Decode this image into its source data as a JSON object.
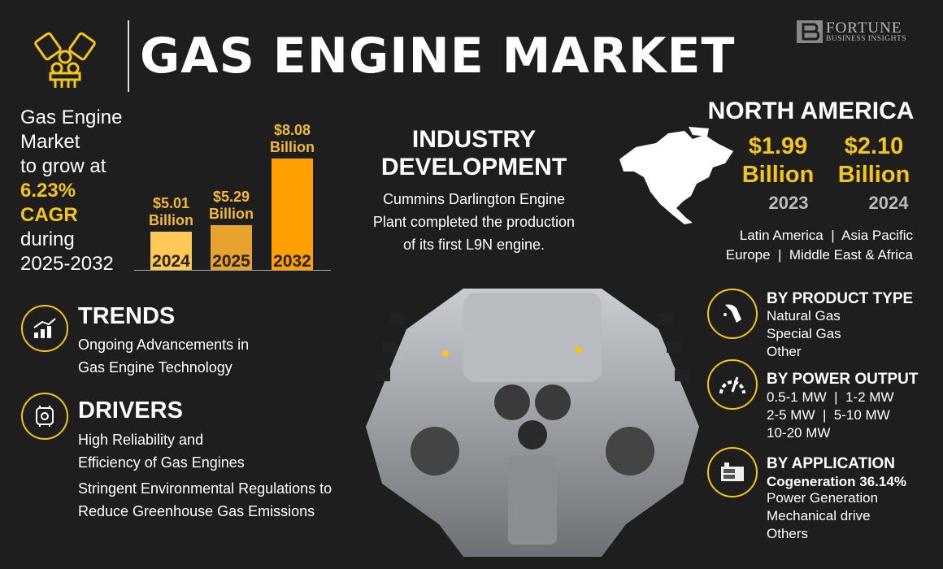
{
  "header": {
    "title": "GAS ENGINE MARKET",
    "logo_line1": "FORTUNE",
    "logo_line2": "BUSINESS INSIGHTS"
  },
  "summary": {
    "line1": "Gas Engine",
    "line2": "Market",
    "line3": "to grow at",
    "cagr": "6.23%",
    "cagr_label": "CAGR",
    "line4": "during",
    "period": "2025-2032"
  },
  "chart_data": {
    "type": "bar",
    "categories": [
      "2024",
      "2025",
      "2032"
    ],
    "values": [
      5.01,
      5.29,
      8.08
    ],
    "data_labels": [
      [
        "$5.01",
        "Billion"
      ],
      [
        "$5.29",
        "Billion"
      ],
      [
        "$8.08",
        "Billion"
      ]
    ],
    "unit": "USD Billion",
    "colors": [
      "#ffc857",
      "#e8a22e",
      "#ff9f00"
    ]
  },
  "industry": {
    "heading1": "INDUSTRY",
    "heading2": "DEVELOPMENT",
    "body1": "Cummins Darlington Engine",
    "body2": "Plant completed the production",
    "body3": "of its first L9N engine."
  },
  "region": {
    "name": "NORTH AMERICA",
    "values": [
      {
        "amount": "$1.99",
        "unit": "Billion",
        "year": "2023"
      },
      {
        "amount": "$2.10",
        "unit": "Billion",
        "year": "2024"
      }
    ],
    "others1": "Latin America  |  Asia Pacific",
    "others2": "Europe  |  Middle East & Africa"
  },
  "trends": {
    "heading": "TRENDS",
    "line1": "Ongoing Advancements in",
    "line2": "Gas Engine Technology"
  },
  "drivers": {
    "heading": "DRIVERS",
    "line1": "High Reliability and",
    "line2": "Efficiency of Gas Engines",
    "line3": "Stringent Environmental Regulations to",
    "line4": "Reduce Greenhouse Gas Emissions"
  },
  "segments": [
    {
      "heading": "BY PRODUCT TYPE",
      "items": [
        "Natural Gas",
        "Special Gas",
        "Other"
      ]
    },
    {
      "heading": "BY POWER OUTPUT",
      "items": [
        "0.5-1 MW  |  1-2 MW",
        "2-5 MW  |  5-10 MW",
        "10-20 MW"
      ]
    },
    {
      "heading": "BY APPLICATION",
      "highlight": "Cogeneration 36.14%",
      "items": [
        "Power Generation",
        "Mechanical drive",
        "Others"
      ]
    }
  ],
  "colors": {
    "accent": "#f5c518",
    "background": "#1e1e1e"
  }
}
